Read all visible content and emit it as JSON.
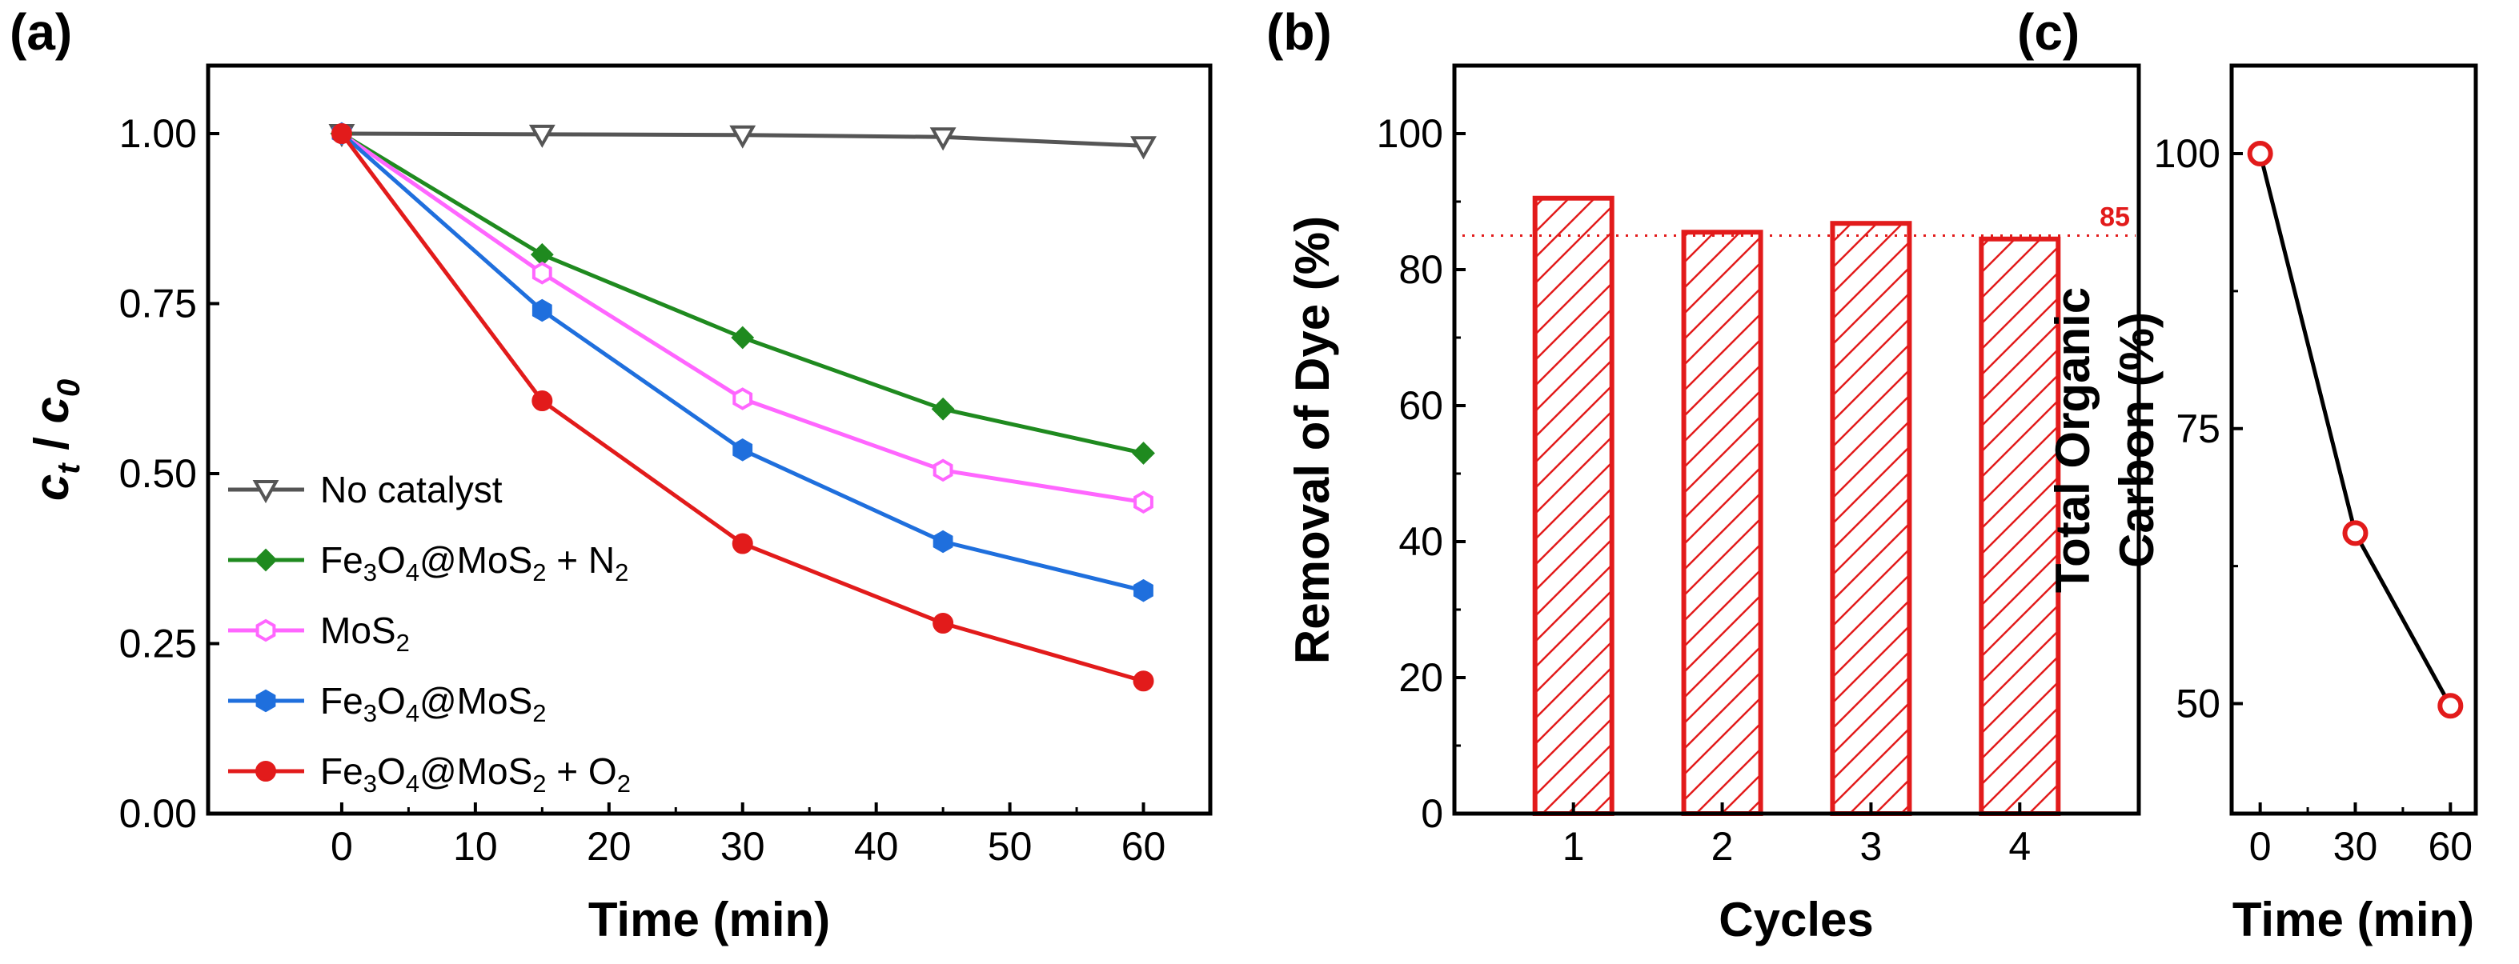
{
  "chart_data": [
    {
      "panel": "(a)",
      "type": "line",
      "xlabel": "Time (min)",
      "ylabel": "c_t / c_0",
      "ylabel_parts": {
        "c1": "c",
        "sub1": "t",
        "slash": " / ",
        "c2": "c",
        "sub2": "0"
      },
      "xlim": [
        -10,
        65
      ],
      "ylim": [
        0,
        1.1
      ],
      "xticks": [
        0,
        10,
        20,
        30,
        40,
        50,
        60
      ],
      "xtick_labels": [
        "0",
        "10",
        "20",
        "30",
        "40",
        "50",
        "60"
      ],
      "yticks": [
        0,
        0.25,
        0.5,
        0.75,
        1.0
      ],
      "ytick_labels": [
        "0.00",
        "0.25",
        "0.50",
        "0.75",
        "1.00"
      ],
      "x": [
        0,
        15,
        30,
        45,
        60
      ],
      "series": [
        {
          "name": "No catalyst",
          "label_parts": [
            [
              "No catalyst",
              ""
            ]
          ],
          "values": [
            1.0,
            0.999,
            0.998,
            0.995,
            0.982
          ],
          "color": "#555555",
          "marker": "triangle-down-open",
          "line": "#555555"
        },
        {
          "name": "Fe3O4@MoS2 + N2",
          "label_parts": [
            [
              "Fe",
              ""
            ],
            [
              "3",
              "sub"
            ],
            [
              "O",
              ""
            ],
            [
              "4",
              "sub"
            ],
            [
              "@MoS",
              ""
            ],
            [
              "2",
              "sub"
            ],
            [
              " + N",
              ""
            ],
            [
              "2",
              "sub"
            ]
          ],
          "values": [
            1.0,
            0.822,
            0.7,
            0.595,
            0.53
          ],
          "color": "#1f8a1f",
          "marker": "diamond-filled",
          "line": "#1f8a1f"
        },
        {
          "name": "MoS2",
          "label_parts": [
            [
              "MoS",
              ""
            ],
            [
              "2",
              "sub"
            ]
          ],
          "values": [
            1.0,
            0.795,
            0.61,
            0.505,
            0.458
          ],
          "color": "#ff66ff",
          "marker": "hexagon-open",
          "line": "#ff66ff"
        },
        {
          "name": "Fe3O4@MoS2",
          "label_parts": [
            [
              "Fe",
              ""
            ],
            [
              "3",
              "sub"
            ],
            [
              "O",
              ""
            ],
            [
              "4",
              "sub"
            ],
            [
              "@MoS",
              ""
            ],
            [
              "2",
              "sub"
            ]
          ],
          "values": [
            1.0,
            0.74,
            0.535,
            0.4,
            0.328
          ],
          "color": "#1f6fdd",
          "marker": "hexagon-filled",
          "line": "#1f6fdd"
        },
        {
          "name": "Fe3O4@MoS2 + O2",
          "label_parts": [
            [
              "Fe",
              ""
            ],
            [
              "3",
              "sub"
            ],
            [
              "O",
              ""
            ],
            [
              "4",
              "sub"
            ],
            [
              "@MoS",
              ""
            ],
            [
              "2",
              "sub"
            ],
            [
              " + O",
              ""
            ],
            [
              "2",
              "sub"
            ]
          ],
          "values": [
            1.0,
            0.607,
            0.397,
            0.28,
            0.195
          ],
          "color": "#e21b1b",
          "marker": "circle-filled",
          "line": "#e21b1b"
        }
      ],
      "legend_location": "lower-left"
    },
    {
      "panel": "(b)",
      "type": "bar",
      "xlabel": "Cycles",
      "ylabel": "Removal of Dye (%)",
      "categories": [
        "1",
        "2",
        "3",
        "4"
      ],
      "values": [
        90.5,
        85.5,
        86.8,
        84.5
      ],
      "ylim": [
        0,
        110
      ],
      "yticks": [
        0,
        20,
        40,
        60,
        80,
        100
      ],
      "ytick_labels": [
        "0",
        "20",
        "40",
        "60",
        "80",
        "100"
      ],
      "reference_line": {
        "value": 85,
        "label": "85"
      },
      "bar_color": "#e21b1b",
      "hatch": "diagonal"
    },
    {
      "panel": "(c)",
      "type": "line",
      "xlabel": "Time (min)",
      "ylabel_line1": "Total Organic",
      "ylabel_line2": "Carbon (%)",
      "x": [
        0,
        30,
        60
      ],
      "values": [
        100,
        65.5,
        49.8
      ],
      "xlim": [
        -9,
        68
      ],
      "ylim": [
        40,
        108
      ],
      "xticks": [
        0,
        30,
        60
      ],
      "xtick_labels": [
        "0",
        "30",
        "60"
      ],
      "yticks": [
        50,
        75,
        100
      ],
      "ytick_labels": [
        "50",
        "75",
        "100"
      ],
      "color": "#e21b1b",
      "marker": "circle-open"
    }
  ]
}
